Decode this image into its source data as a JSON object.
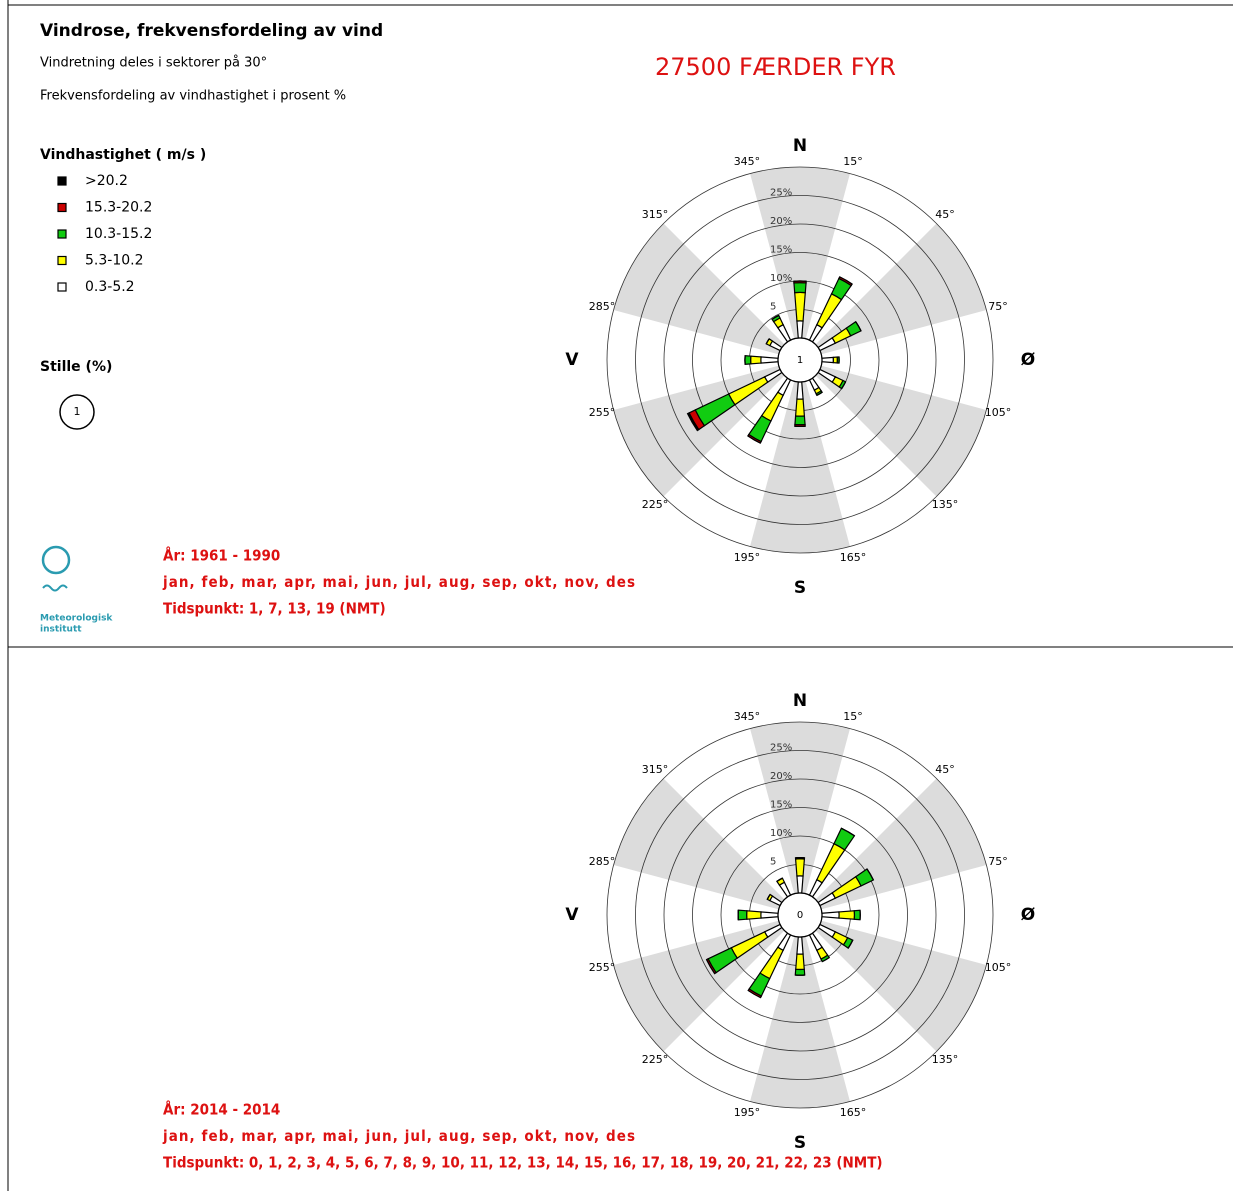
{
  "chart_data": [
    {
      "type": "windrose",
      "title": "Vindrose, frekvensfordeling av vind",
      "subtitle": [
        "Vindretning deles i sektorer på 30°",
        "Frekvensfordeling av vindhastighet i prosent %"
      ],
      "station": "27500 FÆRDER FYR",
      "legend_title": "Vindhastighet ( m/s )",
      "calm_label": "Stille (%)",
      "calm": 1,
      "directions": [
        "N",
        "Ø",
        "S",
        "V"
      ],
      "sector_labels": [
        "15°",
        "45°",
        "75°",
        "105°",
        "135°",
        "165°",
        "195°",
        "225°",
        "255°",
        "285°",
        "315°",
        "345°"
      ],
      "rlim": [
        0,
        30
      ],
      "rticks": [
        5,
        {
          "value": 10,
          "label": "10%"
        },
        {
          "value": 15,
          "label": "15%"
        },
        {
          "value": 20,
          "label": "20%"
        },
        {
          "value": 25,
          "label": "25%"
        }
      ],
      "series": [
        {
          "name": ">20.2",
          "color": "#000000",
          "values": [
            0,
            0,
            0,
            0,
            0,
            0,
            0,
            0,
            0.3,
            0,
            0,
            0
          ]
        },
        {
          "name": "15.3-20.2",
          "color": "#cc0000",
          "values": [
            0.3,
            0.3,
            0,
            0,
            0,
            0,
            0.3,
            0.3,
            1.2,
            0,
            0,
            0
          ]
        },
        {
          "name": "10.3-15.2",
          "color": "#11cc11",
          "values": [
            1.7,
            3,
            2,
            0.3,
            0.5,
            0.3,
            1.5,
            4,
            6.5,
            1,
            0,
            0.5
          ]
        },
        {
          "name": "5.3-10.2",
          "color": "#ffff00",
          "values": [
            5,
            6,
            3,
            0.7,
            1.5,
            0.7,
            3,
            5,
            7,
            1.8,
            0.7,
            1.3
          ]
        },
        {
          "name": "0.3-5.2",
          "color": "#ffffff",
          "values": [
            3,
            3,
            3,
            2,
            3,
            2,
            3,
            3,
            3,
            3,
            2,
            3
          ]
        }
      ],
      "footer": [
        "År: 1961 - 1990",
        "jan, feb, mar, apr, mai, jun, jul, aug, sep, okt, nov, des",
        "Tidspunkt: 1, 7, 13, 19 (NMT)"
      ],
      "logo": [
        "Meteorologisk",
        "institutt"
      ]
    },
    {
      "type": "windrose",
      "calm": 0,
      "series": [
        {
          "values": [
            0,
            0,
            0,
            0,
            0,
            0,
            0,
            0,
            0,
            0,
            0,
            0
          ]
        },
        {
          "values": [
            0,
            0,
            0,
            0,
            0,
            0,
            0,
            0.3,
            0.3,
            0,
            0,
            0
          ]
        },
        {
          "values": [
            0.2,
            3,
            2.4,
            1,
            1,
            0.5,
            1,
            3.4,
            4.5,
            1.5,
            0,
            0
          ]
        },
        {
          "values": [
            3,
            7,
            5,
            2.7,
            2.4,
            1.7,
            2.7,
            5.5,
            6.5,
            2.5,
            0.5,
            0.8
          ]
        },
        {
          "values": [
            3,
            3,
            3,
            3,
            3,
            3,
            3,
            3,
            3,
            3,
            2,
            2.5
          ]
        }
      ],
      "footer": [
        "År: 2014 - 2014",
        "jan, feb, mar, apr, mai, jun, jul, aug, sep, okt, nov, des",
        "Tidspunkt: 0, 1, 2, 3, 4, 5, 6, 7, 8, 9, 10, 11, 12, 13, 14, 15, 16, 17, 18, 19, 20, 21, 22, 23 (NMT)"
      ]
    }
  ]
}
